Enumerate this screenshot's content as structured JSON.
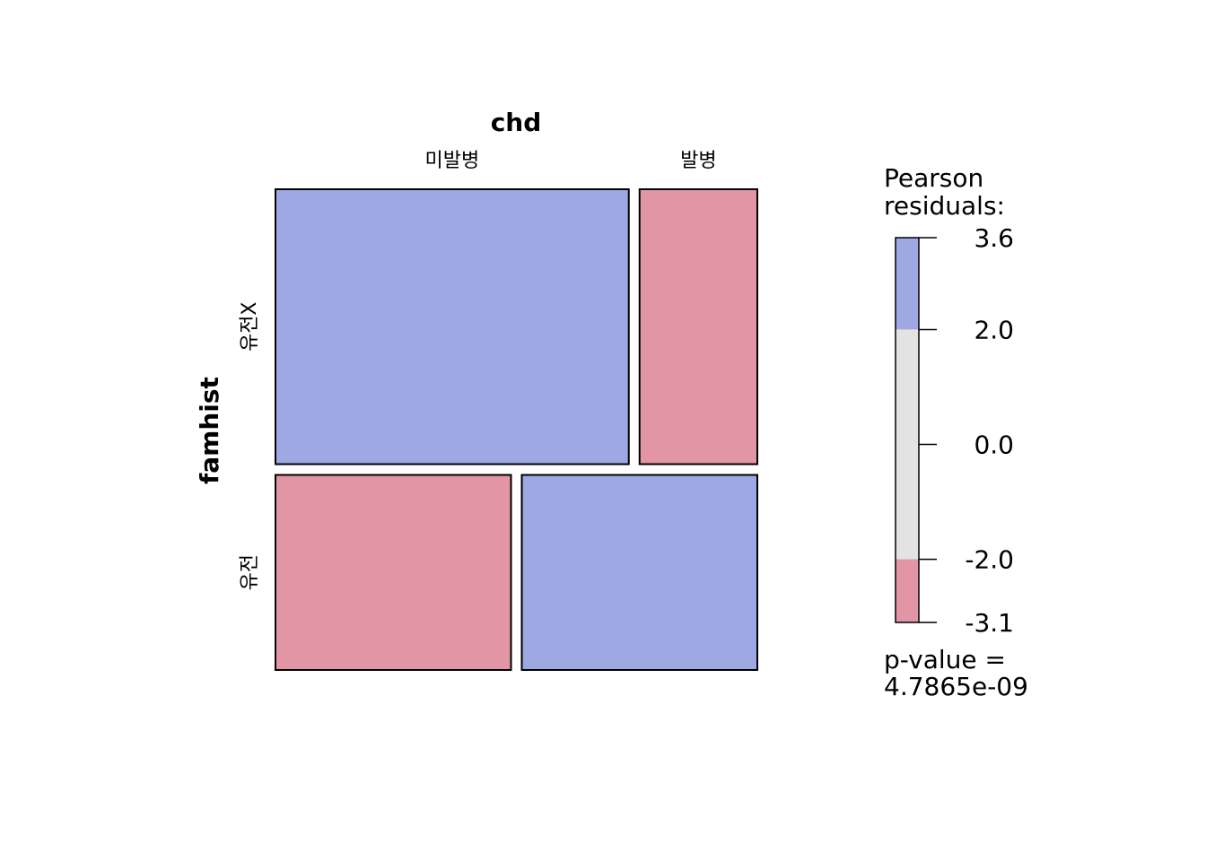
{
  "chart_data": {
    "type": "mosaic",
    "col_variable": "chd",
    "row_variable": "famhist",
    "col_categories": [
      "미발병",
      "발병"
    ],
    "row_categories": [
      "유전X",
      "유전"
    ],
    "row_proportions": [
      0.585,
      0.415
    ],
    "col_proportions_within_row": [
      [
        0.75,
        0.25
      ],
      [
        0.5,
        0.5
      ]
    ],
    "cell_shading": [
      [
        "positive",
        "negative"
      ],
      [
        "negative",
        "positive"
      ]
    ],
    "legend": {
      "title_lines": [
        "Pearson",
        "residuals:"
      ],
      "range": [
        -3.1,
        3.6
      ],
      "ticks": [
        3.6,
        2.0,
        0.0,
        -2.0,
        -3.1
      ],
      "tick_labels": [
        "3.6",
        "2.0",
        "0.0",
        "-2.0",
        "-3.1"
      ],
      "bands": [
        {
          "from": 2.0,
          "to": 3.6,
          "color": "#9ea8e2"
        },
        {
          "from": -2.0,
          "to": 2.0,
          "color": "#e3e3e3"
        },
        {
          "from": -3.1,
          "to": -2.0,
          "color": "#e295a5"
        }
      ]
    },
    "pvalue_lines": [
      "p-value =",
      "4.7865e-09"
    ],
    "colors": {
      "positive": "#9ea8e2",
      "negative": "#e295a5",
      "neutral": "#e3e3e3"
    }
  }
}
